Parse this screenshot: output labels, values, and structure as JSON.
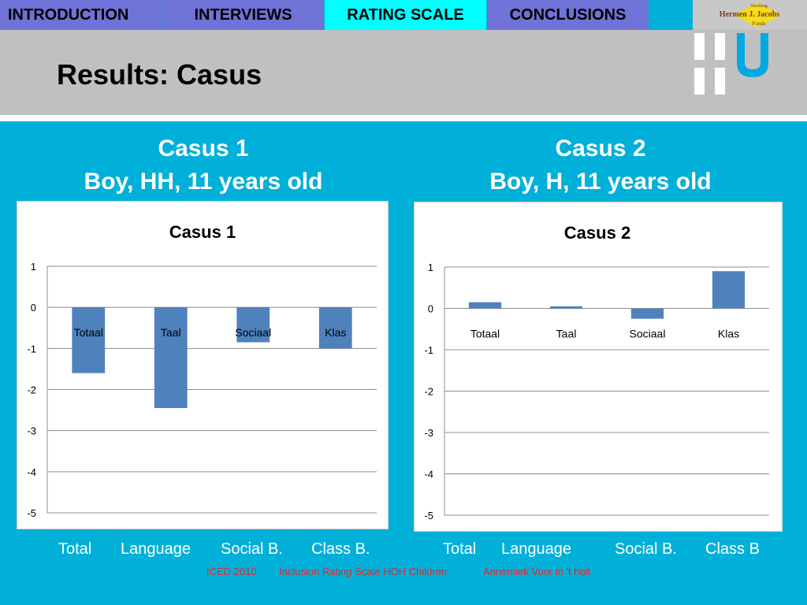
{
  "nav": {
    "tabs": [
      {
        "label": "INTRODUCTION",
        "active": false
      },
      {
        "label": "INTERVIEWS",
        "active": false
      },
      {
        "label": "RATING SCALE",
        "active": true
      },
      {
        "label": "CONCLUSIONS",
        "active": false
      }
    ],
    "tab_color": "#6f72d6",
    "active_tab_color": "#00ffff"
  },
  "logos": {
    "foundation_lines": [
      "Stichting",
      "Hermen J. Jacobs",
      "Fonds"
    ],
    "hu_letters": "HU"
  },
  "slide": {
    "title": "Results: Casus",
    "background": "#00b0d9"
  },
  "casus": [
    {
      "heading_line1": "Casus 1",
      "heading_line2": "Boy, HH, 11 years old",
      "x_labels": [
        "Total",
        "Language",
        "Social B.",
        "Class B."
      ]
    },
    {
      "heading_line1": "Casus 2",
      "heading_line2": "Boy, H, 11 years old",
      "x_labels": [
        "Total",
        "Language",
        "Social B.",
        "Class B"
      ]
    }
  ],
  "chart_data": [
    {
      "type": "bar",
      "title": "Casus 1",
      "categories": [
        "Totaal",
        "Taal",
        "Sociaal",
        "Klas"
      ],
      "values": [
        -1.6,
        -2.45,
        -0.85,
        -1.0
      ],
      "ylim": [
        -5,
        1
      ],
      "yticks": [
        1,
        0,
        -1,
        -2,
        -3,
        -4,
        -5
      ],
      "grid": true,
      "bar_color": "#4f81bd"
    },
    {
      "type": "bar",
      "title": "Casus 2",
      "categories": [
        "Totaal",
        "Taal",
        "Sociaal",
        "Klas"
      ],
      "values": [
        0.15,
        0.05,
        -0.25,
        0.9
      ],
      "ylim": [
        -5,
        1
      ],
      "yticks": [
        1,
        0,
        -1,
        -2,
        -3,
        -4,
        -5
      ],
      "grid": true,
      "bar_color": "#4f81bd"
    }
  ],
  "footer": {
    "conference": "ICED 2010",
    "topic": "Inclusion Rating Scale HOH Children",
    "author": "Annemiek Voor in 't holt"
  }
}
